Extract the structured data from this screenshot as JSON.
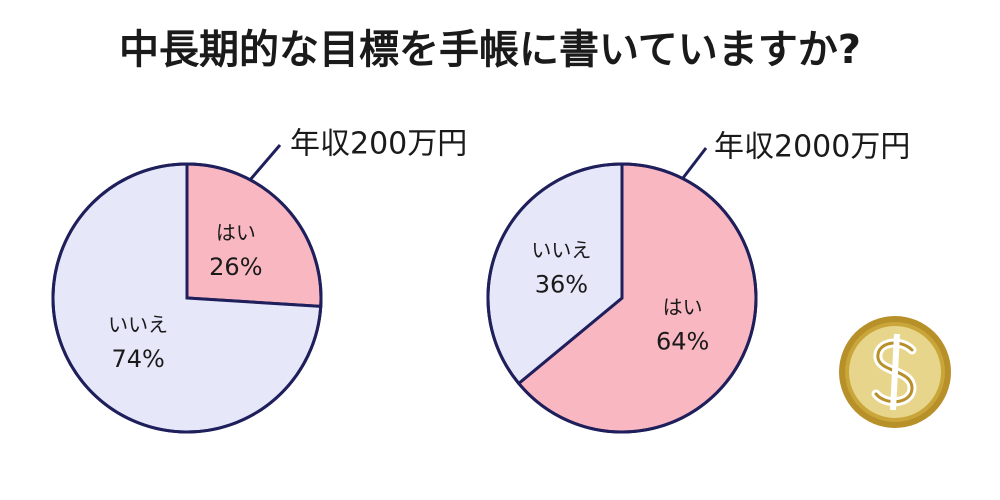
{
  "title": "中長期的な目標を手帳に書いていますか?",
  "chart_data": [
    {
      "type": "pie",
      "title": "年収200万円",
      "categories": [
        "はい",
        "いいえ"
      ],
      "values": [
        26,
        74
      ],
      "value_labels": [
        "26%",
        "74%"
      ],
      "colors": [
        "#f9b7c2",
        "#e6e8fa"
      ]
    },
    {
      "type": "pie",
      "title": "年収2000万円",
      "categories": [
        "はい",
        "いいえ"
      ],
      "values": [
        64,
        36
      ],
      "value_labels": [
        "64%",
        "36%"
      ],
      "colors": [
        "#f9b7c2",
        "#e6e8fa"
      ]
    }
  ]
}
